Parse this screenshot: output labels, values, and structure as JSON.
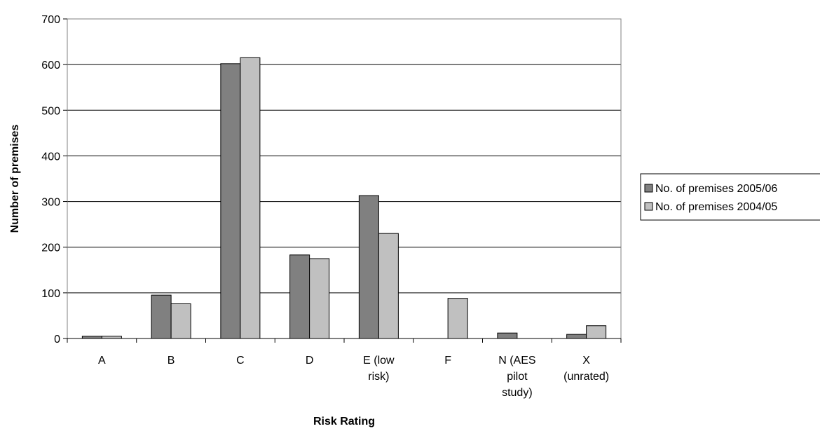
{
  "chart_data": {
    "type": "bar",
    "title": "",
    "xlabel": "Risk Rating",
    "ylabel": "Number of premises",
    "ylim": [
      0,
      700
    ],
    "yticks": [
      0,
      100,
      200,
      300,
      400,
      500,
      600,
      700
    ],
    "grid": "horizontal",
    "legend_position": "right",
    "categories": [
      [
        "A"
      ],
      [
        "B"
      ],
      [
        "C"
      ],
      [
        "D"
      ],
      [
        "E (low",
        "risk)"
      ],
      [
        "F"
      ],
      [
        "N (AES",
        "pilot",
        "study)"
      ],
      [
        "X",
        "(unrated)"
      ]
    ],
    "series": [
      {
        "name": "No. of premises 2005/06",
        "color": "#808080",
        "values": [
          5,
          95,
          602,
          183,
          313,
          0,
          12,
          9
        ]
      },
      {
        "name": "No. of premises 2004/05",
        "color": "#c0c0c0",
        "values": [
          5,
          76,
          615,
          175,
          230,
          88,
          0,
          28
        ]
      }
    ]
  }
}
